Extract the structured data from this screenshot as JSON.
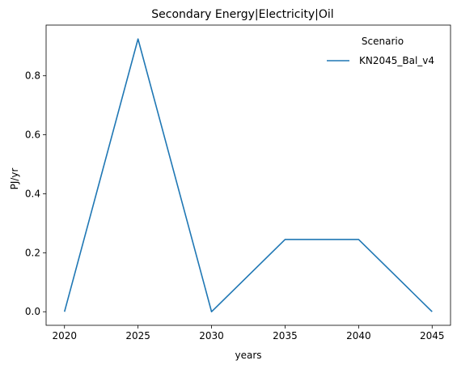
{
  "chart_data": {
    "type": "line",
    "title": "Secondary Energy|Electricity|Oil",
    "xlabel": "years",
    "ylabel": "PJ/yr",
    "x": [
      2020,
      2025,
      2030,
      2035,
      2040,
      2045
    ],
    "xticks": [
      "2020",
      "2025",
      "2030",
      "2035",
      "2040",
      "2045"
    ],
    "yticks": [
      "0.0",
      "0.2",
      "0.4",
      "0.6",
      "0.8"
    ],
    "xlim": [
      2018.75,
      2046.25
    ],
    "ylim": [
      -0.046,
      0.972
    ],
    "grid": false,
    "legend": {
      "title": "Scenario",
      "placement": "top-right"
    },
    "series": [
      {
        "name": "KN2045_Bal_v4",
        "color": "#1f77b4",
        "values": [
          0.0,
          0.925,
          0.0,
          0.245,
          0.245,
          0.0
        ]
      }
    ]
  }
}
